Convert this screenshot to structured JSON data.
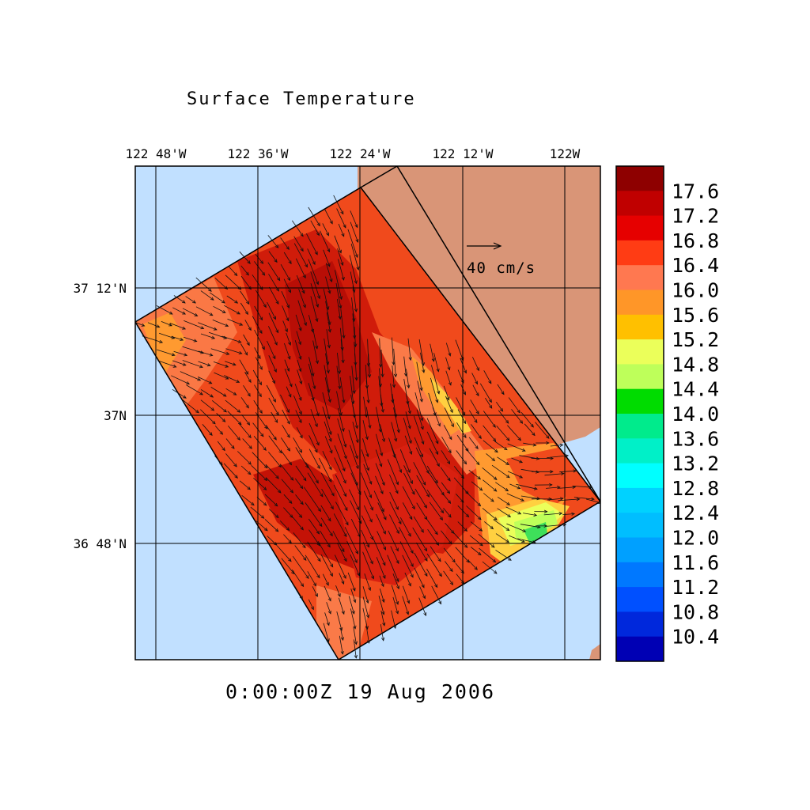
{
  "title": "Surface Temperature",
  "timestamp": "0:00:00Z  19 Aug 2006",
  "lon_labels": [
    "122 48'W",
    "122 36'W",
    "122 24'W",
    "122 12'W",
    "122W"
  ],
  "lat_labels": [
    "37 12'N",
    "37N",
    "36 48'N"
  ],
  "vector_scale_label": "40 cm/s",
  "colorbar": {
    "labels": [
      "17.6",
      "17.2",
      "16.8",
      "16.4",
      "16.0",
      "15.6",
      "15.2",
      "14.8",
      "14.4",
      "14.0",
      "13.6",
      "13.2",
      "12.8",
      "12.4",
      "12.0",
      "11.6",
      "11.2",
      "10.8",
      "10.4"
    ],
    "colors": [
      "#8e0000",
      "#c00000",
      "#e60000",
      "#ff3c14",
      "#ff7850",
      "#ff9628",
      "#ffc000",
      "#ebff5a",
      "#beff5a",
      "#00dc00",
      "#00eb8c",
      "#00f0c8",
      "#00ffff",
      "#00d2ff",
      "#00beff",
      "#00a0ff",
      "#0078ff",
      "#0050ff",
      "#0028dc",
      "#0000b4"
    ]
  },
  "colors": {
    "ocean": "#c1e0ff",
    "land": "#d99577",
    "domain_warm": "#ee4a1a",
    "domain_hot": "#cc1608"
  }
}
